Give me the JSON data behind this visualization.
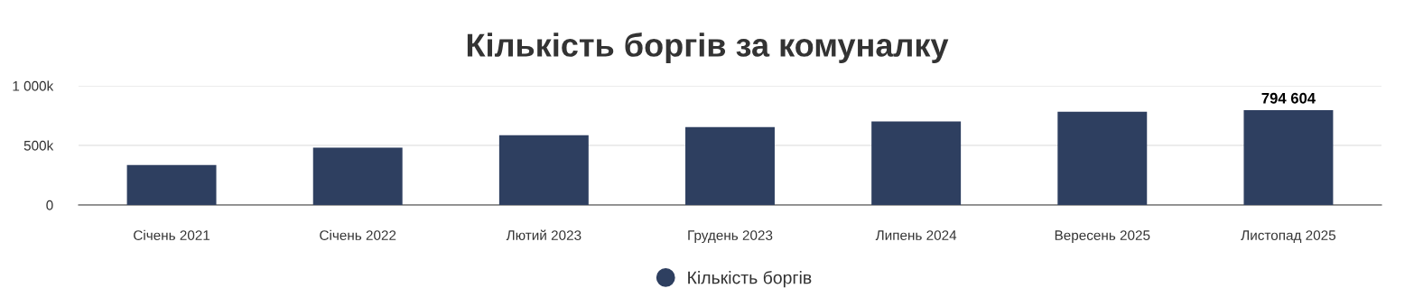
{
  "chart_data": {
    "type": "bar",
    "title": "Кількість боргів за комуналку",
    "categories": [
      "Січень 2021",
      "Січень 2022",
      "Лютий 2023",
      "Грудень 2023",
      "Липень 2024",
      "Вересень 2025",
      "Листопад 2025"
    ],
    "series": [
      {
        "name": "Кількість боргів",
        "color": "#2e3f60",
        "values": [
          335000,
          481000,
          586000,
          654000,
          700000,
          783000,
          794604
        ],
        "value_labels": [
          null,
          null,
          null,
          null,
          null,
          null,
          "794 604"
        ]
      }
    ],
    "ylim": [
      0,
      1000000
    ],
    "yticks": [
      0,
      {
        "value": 500000,
        "label": "500k"
      },
      {
        "value": 1000000,
        "label": "1 000k"
      }
    ],
    "grid": "y",
    "legend": "bottom"
  }
}
